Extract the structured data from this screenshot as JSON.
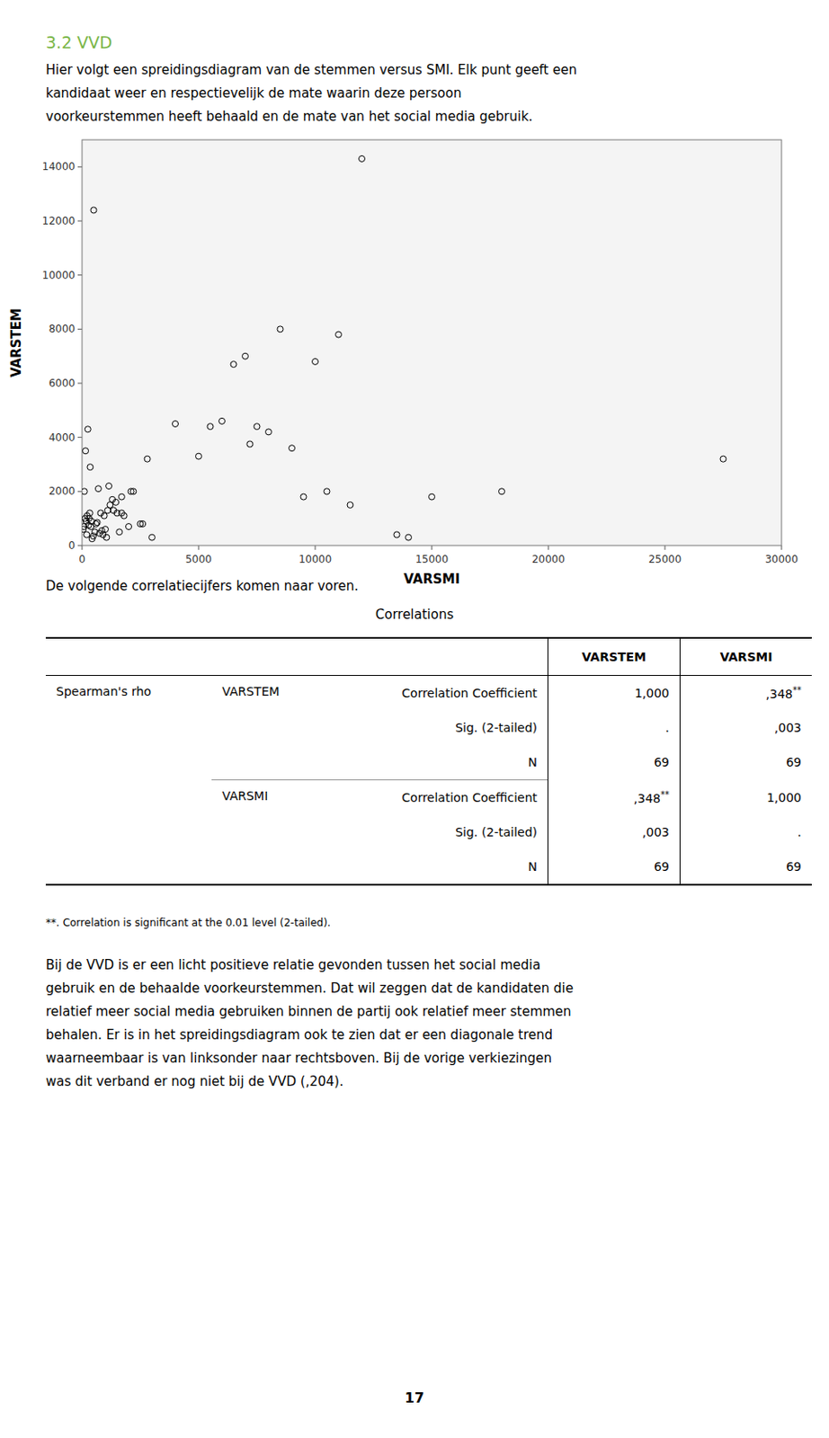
{
  "chart_data": {
    "type": "scatter",
    "x": [
      500,
      250,
      100,
      150,
      350,
      700,
      1200,
      800,
      600,
      1500,
      1800,
      1000,
      2000,
      900,
      400,
      300,
      200,
      1100,
      1600,
      2200,
      2500,
      3000,
      1300,
      1700,
      2800,
      4000,
      5000,
      5500,
      6000,
      6500,
      7000,
      7200,
      7500,
      8000,
      8500,
      9000,
      9500,
      10000,
      10500,
      11000,
      11500,
      12000,
      13500,
      14000,
      15000,
      18000,
      27500,
      50,
      80,
      130,
      180,
      220,
      280,
      330,
      380,
      430,
      480,
      550,
      650,
      750,
      850,
      950,
      1050,
      1150,
      1350,
      1450,
      1700,
      2100,
      2600
    ],
    "values": [
      12400,
      4300,
      2000,
      3500,
      2900,
      2100,
      1500,
      1200,
      800,
      1200,
      1100,
      600,
      700,
      400,
      900,
      1000,
      400,
      1300,
      500,
      2000,
      800,
      300,
      1700,
      1200,
      3200,
      4500,
      3300,
      4400,
      4600,
      6700,
      7000,
      3750,
      4400,
      4200,
      8000,
      3600,
      1800,
      6800,
      2000,
      7800,
      1500,
      14300,
      400,
      300,
      1800,
      2000,
      3200,
      600,
      700,
      1000,
      900,
      1100,
      750,
      1200,
      700,
      250,
      350,
      500,
      850,
      450,
      550,
      1100,
      300,
      2200,
      1300,
      1600,
      1800,
      2000,
      800
    ],
    "xlabel": "VARSMI",
    "ylabel": "VARSTEM",
    "xlim": [
      0,
      30000
    ],
    "ylim": [
      0,
      15000
    ],
    "xticks": [
      0,
      5000,
      10000,
      15000,
      20000,
      25000,
      30000
    ],
    "yticks": [
      0,
      2000,
      4000,
      6000,
      8000,
      10000,
      12000,
      14000
    ],
    "color": "#000000",
    "marker": "circle",
    "grid": false
  },
  "document": {
    "heading": "3.2 VVD",
    "heading_color": "#7ab648",
    "paragraphs_before": [
      "Hier volgt een spreidingsdiagram van de stemmen versus SMI. Elk punt geeft een",
      "kandidaat weer en respectievelijk de mate waarin deze persoon",
      "voorkeurstemmen heeft behaald en de mate van het social media gebruik."
    ],
    "paragraph_between": "De volgende correlatiecijfers komen naar voren.",
    "table": {
      "title": "Correlations",
      "columns": [
        "VARSTEM",
        "VARSMI"
      ],
      "group_label": "Spearman's rho",
      "groups": [
        {
          "name": "VARSTEM",
          "rows": [
            {
              "label": "Correlation Coefficient",
              "cells": [
                {
                  "text": "1,000",
                  "sup": null
                },
                {
                  "text": ",348",
                  "sup": "**"
                }
              ]
            },
            {
              "label": "Sig. (2-tailed)",
              "cells": [
                {
                  "text": ".",
                  "sup": null
                },
                {
                  "text": ",003",
                  "sup": null
                }
              ]
            },
            {
              "label": "N",
              "cells": [
                {
                  "text": "69",
                  "sup": null
                },
                {
                  "text": "69",
                  "sup": null
                }
              ]
            }
          ]
        },
        {
          "name": "VARSMI",
          "rows": [
            {
              "label": "Correlation Coefficient",
              "cells": [
                {
                  "text": ",348",
                  "sup": "**"
                },
                {
                  "text": "1,000",
                  "sup": null
                }
              ]
            },
            {
              "label": "Sig. (2-tailed)",
              "cells": [
                {
                  "text": ",003",
                  "sup": null
                },
                {
                  "text": ".",
                  "sup": null
                }
              ]
            },
            {
              "label": "N",
              "cells": [
                {
                  "text": "69",
                  "sup": null
                },
                {
                  "text": "69",
                  "sup": null
                }
              ]
            }
          ]
        }
      ]
    },
    "footnote": "**. Correlation is significant at the 0.01 level (2-tailed).",
    "paragraphs_after": [
      "Bij de VVD is er een licht positieve relatie gevonden tussen het social media",
      "gebruik en de behaalde voorkeurstemmen. Dat wil zeggen dat de kandidaten die",
      "relatief meer social media gebruiken binnen de partij ook relatief meer stemmen",
      "behalen. Er is in het spreidingsdiagram ook te zien dat er een diagonale trend",
      "waarneembaar is van linksonder naar rechtsboven. Bij de vorige verkiezingen",
      "was dit verband er nog niet bij de VVD (,204)."
    ],
    "page_number": "17"
  }
}
